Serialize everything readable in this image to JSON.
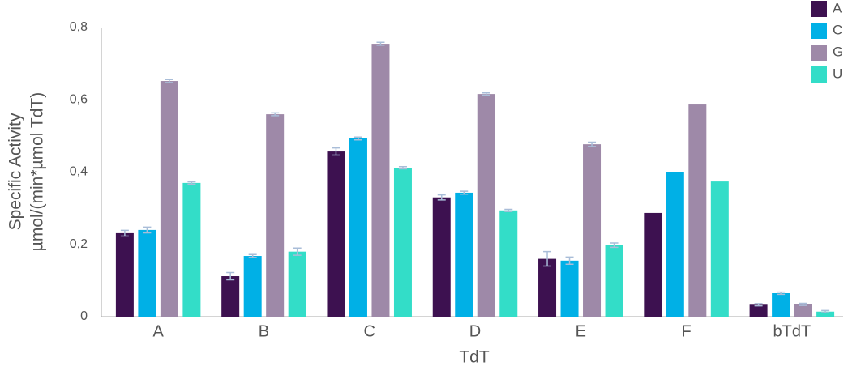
{
  "chart_data": {
    "type": "bar",
    "categories": [
      "A",
      "B",
      "C",
      "D",
      "E",
      "F",
      "bTdT"
    ],
    "x_label": "TdT",
    "y_label": [
      "Specific Activity",
      "µmol/(min*µmol TdT)"
    ],
    "series": [
      {
        "name": "A",
        "color": "#3d1150",
        "values": [
          0.231,
          0.112,
          0.457,
          0.33,
          0.16,
          0.287,
          0.033
        ],
        "errors": [
          0.008,
          0.01,
          0.01,
          0.007,
          0.02,
          null,
          0.003
        ]
      },
      {
        "name": "C",
        "color": "#00b0e6",
        "values": [
          0.24,
          0.168,
          0.493,
          0.343,
          0.155,
          0.401,
          0.065
        ],
        "errors": [
          0.008,
          0.004,
          0.004,
          0.004,
          0.01,
          null,
          0.003
        ]
      },
      {
        "name": "G",
        "color": "#9e89a8",
        "values": [
          0.652,
          0.56,
          0.755,
          0.616,
          0.477,
          0.587,
          0.034
        ],
        "errors": [
          0.004,
          0.004,
          0.004,
          0.003,
          0.006,
          null,
          0.003
        ]
      },
      {
        "name": "U",
        "color": "#33ddc8",
        "values": [
          0.37,
          0.18,
          0.412,
          0.294,
          0.198,
          0.374,
          0.014
        ],
        "errors": [
          0.003,
          0.01,
          0.003,
          0.003,
          0.006,
          null,
          0.003
        ]
      }
    ],
    "error_color": "#a9bdd8",
    "ylim": [
      0,
      0.8
    ],
    "yticks": [
      0,
      {
        "value": 0.2,
        "label": "0,2"
      },
      {
        "value": 0.4,
        "label": "0,4"
      },
      {
        "value": 0.6,
        "label": "0,6"
      },
      {
        "value": 0.8,
        "label": "0,8"
      }
    ],
    "grid": false,
    "legend": "top-right"
  }
}
